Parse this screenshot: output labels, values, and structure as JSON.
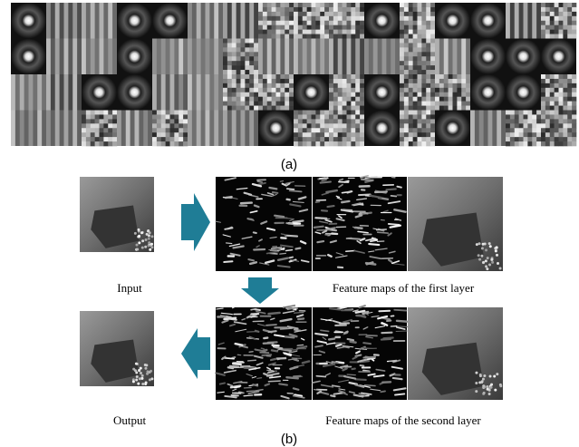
{
  "panel_a": {
    "caption": "(a)"
  },
  "panel_b": {
    "caption": "(b)",
    "labels": {
      "input": "Input",
      "first_layer": "Feature maps of the first layer",
      "output": "Output",
      "second_layer": "Feature maps of the second layer"
    }
  }
}
